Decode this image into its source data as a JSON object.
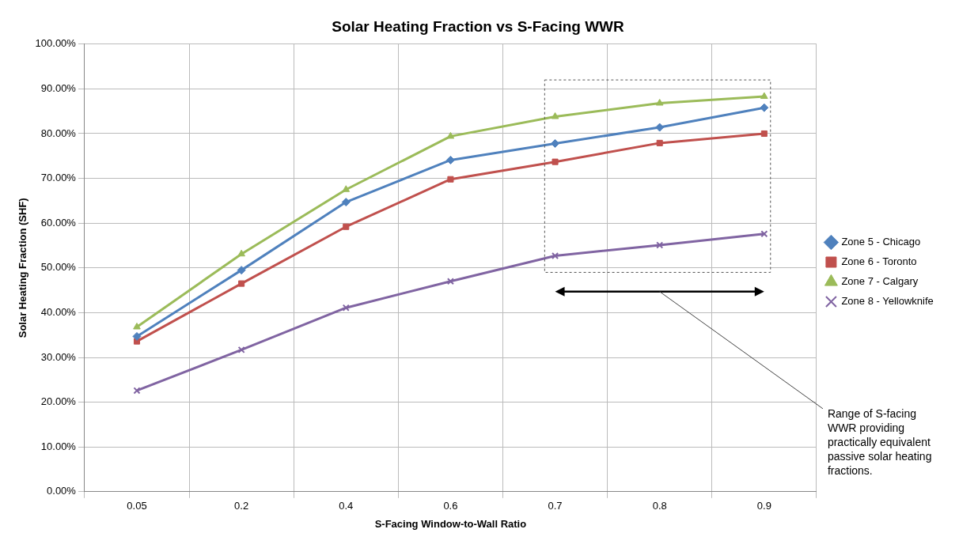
{
  "chart_data": {
    "type": "line",
    "title": "Solar Heating Fraction vs S-Facing WWR",
    "xlabel": "S-Facing Window-to-Wall Ratio",
    "ylabel": "Solar Heating Fraction (SHF)",
    "categories": [
      "0.05",
      "0.2",
      "0.4",
      "0.6",
      "0.7",
      "0.8",
      "0.9"
    ],
    "series": [
      {
        "name": "Zone 5 - Chicago",
        "color": "#4f81bd",
        "marker": "diamond",
        "values": [
          34.7,
          49.5,
          64.7,
          74.1,
          77.8,
          81.4,
          85.8
        ]
      },
      {
        "name": "Zone 6 - Toronto",
        "color": "#c0504d",
        "marker": "square",
        "values": [
          33.6,
          46.5,
          59.2,
          69.8,
          73.7,
          77.9,
          80.0
        ]
      },
      {
        "name": "Zone 7 - Calgary",
        "color": "#9bbb59",
        "marker": "triangle",
        "values": [
          36.8,
          53.1,
          67.5,
          79.4,
          83.8,
          86.8,
          88.3
        ]
      },
      {
        "name": "Zone 8 - Yellowknife",
        "color": "#8064a2",
        "marker": "cross",
        "values": [
          22.6,
          31.7,
          41.1,
          47.0,
          52.7,
          55.1,
          57.6
        ]
      }
    ],
    "ylim": [
      0,
      100
    ],
    "yticks": [
      {
        "value": 0,
        "label": "0.00%"
      },
      {
        "value": 10,
        "label": "10.00%"
      },
      {
        "value": 20,
        "label": "20.00%"
      },
      {
        "value": 30,
        "label": "30.00%"
      },
      {
        "value": 40,
        "label": "40.00%"
      },
      {
        "value": 50,
        "label": "50.00%"
      },
      {
        "value": 60,
        "label": "60.00%"
      },
      {
        "value": 70,
        "label": "70.00%"
      },
      {
        "value": 80,
        "label": "80.00%"
      },
      {
        "value": 90,
        "label": "90.00%"
      },
      {
        "value": 100,
        "label": "100.00%"
      }
    ],
    "grid": true,
    "legend": "right",
    "line_style": "solid",
    "annotations": [
      "Range of S-facing WWR providing practically equivalent passive solar heating fractions."
    ]
  }
}
